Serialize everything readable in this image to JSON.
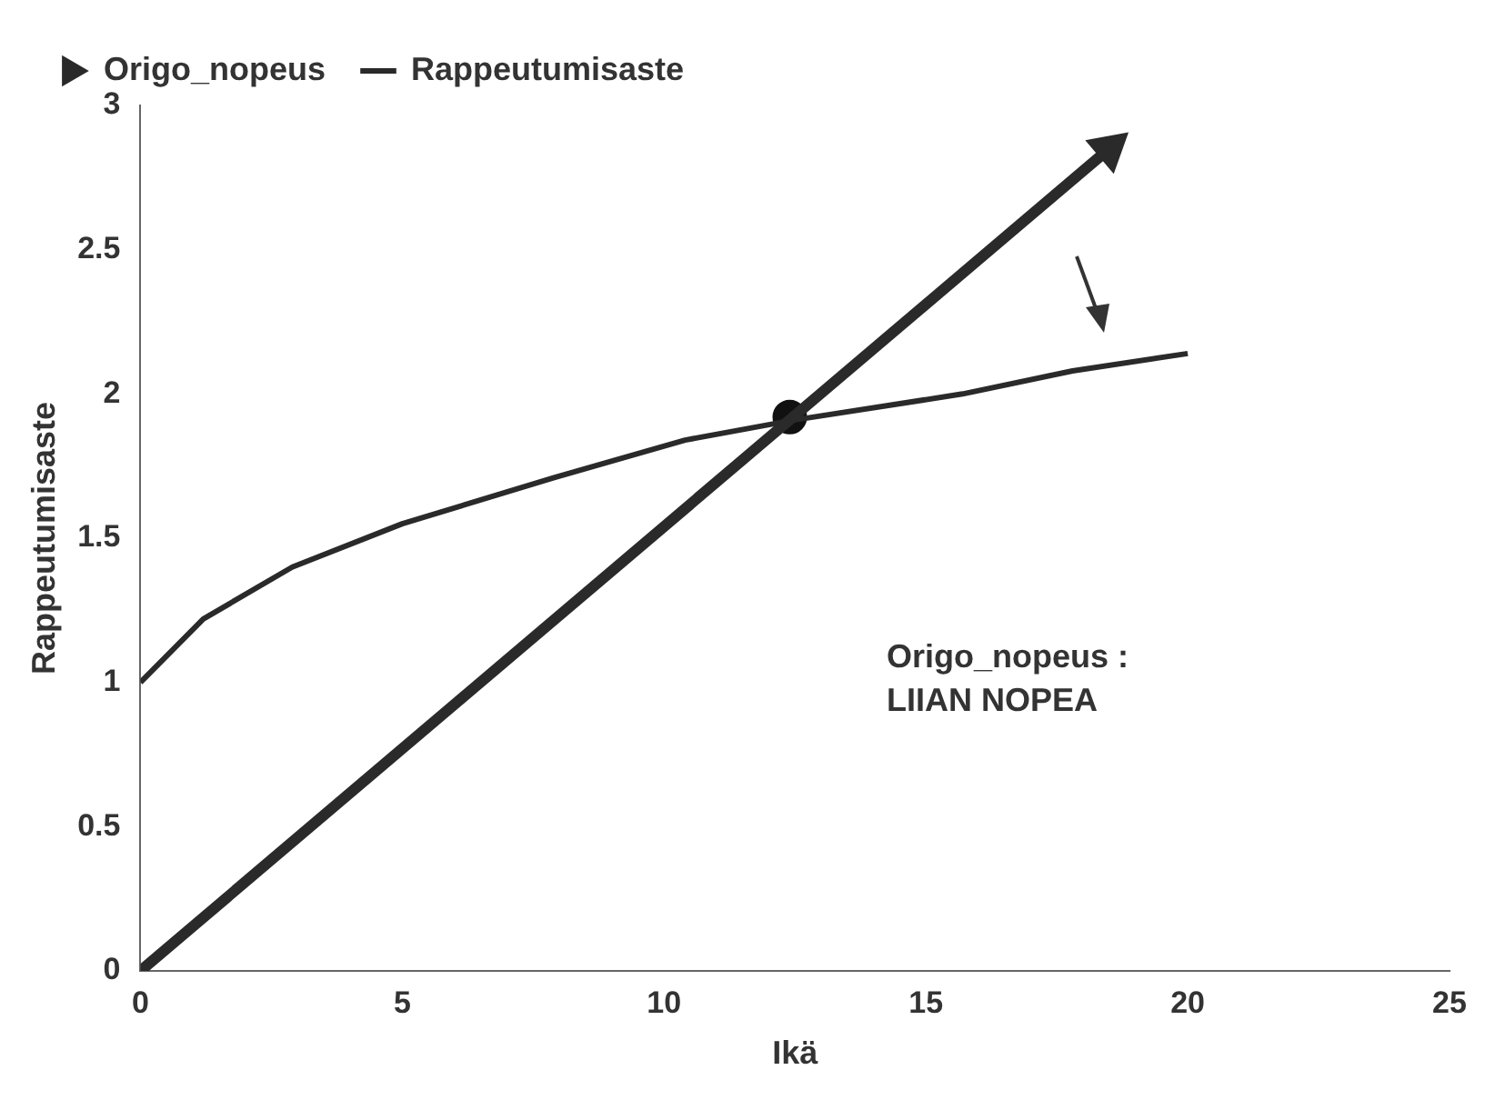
{
  "chart_data": {
    "type": "line",
    "xlabel": "Ikä",
    "ylabel": "Rappeutumisaste",
    "xlim": [
      0,
      25
    ],
    "xticks": [
      0,
      5,
      10,
      15,
      20,
      25
    ],
    "ylim": [
      0,
      3
    ],
    "yticks": [
      0,
      0.5,
      1,
      1.5,
      2,
      2.5,
      3
    ],
    "grid": false,
    "legend": "top left",
    "line_style": "solid",
    "series": [
      {
        "name": "Origo_nopeus",
        "color": "#2a2a2a",
        "x": [
          0,
          18.5
        ],
        "values": [
          0,
          2.85
        ]
      },
      {
        "name": "Rappeutumisaste",
        "color": "#2a2a2a",
        "x": [
          0,
          1.2,
          2.9,
          5.0,
          7.9,
          10.4,
          12.5,
          15.7,
          17.8,
          20
        ],
        "values": [
          1.0,
          1.22,
          1.4,
          1.55,
          1.71,
          1.84,
          1.91,
          2.0,
          2.08,
          2.14
        ]
      },
      {
        "type": "scatter",
        "color": "#111111",
        "marker": "circle",
        "x": [
          12.4
        ],
        "values": [
          1.92
        ]
      }
    ],
    "annotations": [
      "Origo_nopeus :",
      "LIIAN NOPEA"
    ]
  }
}
